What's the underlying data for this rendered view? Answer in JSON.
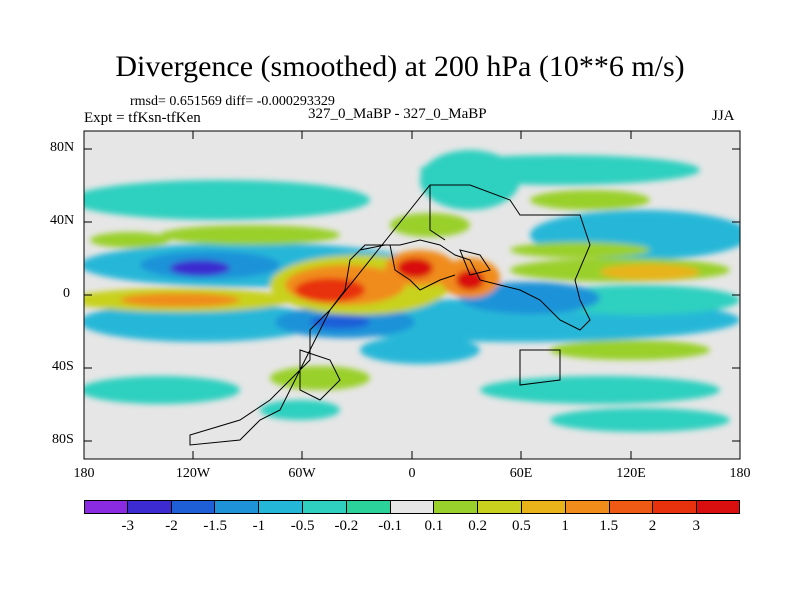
{
  "title": "Divergence (smoothed) at 200 hPa (10**6 m/s)",
  "stats": "rmsd= 0.651569 diff= -0.000293329",
  "expt": "Expt = tfKsn-tfKen",
  "center_label": "327_0_MaBP - 327_0_MaBP",
  "season": "JJA",
  "lat_ticks": [
    "80N",
    "40N",
    "0",
    "40S",
    "80S"
  ],
  "lon_ticks": [
    "180",
    "120W",
    "60W",
    "0",
    "60E",
    "120E",
    "180"
  ],
  "colorbar": {
    "labels": [
      "-3",
      "-2",
      "-1.5",
      "-1",
      "-0.5",
      "-0.2",
      "-0.1",
      "0.1",
      "0.2",
      "0.5",
      "1",
      "1.5",
      "2",
      "3"
    ],
    "colors": [
      "#8a2be2",
      "#3b2bd0",
      "#1e5fd8",
      "#1f93d8",
      "#25b7d8",
      "#2fd0c0",
      "#2bd39a",
      "#e6e6e6",
      "#9ad02b",
      "#c8d21e",
      "#e8b41a",
      "#f08c1a",
      "#ee5a14",
      "#e8320e",
      "#d90f0f"
    ]
  }
}
